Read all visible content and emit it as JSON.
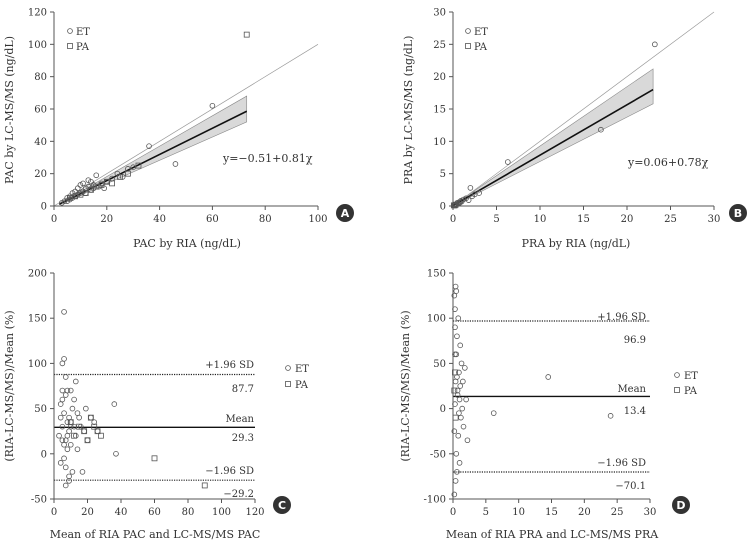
{
  "colors": {
    "axis": "#555555",
    "text": "#333333",
    "band": "#d9d9d9",
    "badge": "#333333"
  },
  "chart_data": [
    {
      "id": "A",
      "type": "scatter",
      "xlabel": "PAC by RIA (ng/dL)",
      "ylabel": "PAC by LC-MS/MS (ng/dL)",
      "xlim": [
        0,
        100
      ],
      "ylim": [
        0,
        120
      ],
      "xticks": [
        0,
        20,
        40,
        60,
        80,
        100
      ],
      "yticks": [
        0,
        20,
        40,
        60,
        80,
        100,
        120
      ],
      "legend": [
        "ET",
        "PA"
      ],
      "equation": "y=−0.51+0.81χ",
      "identity_line": {
        "x": [
          0,
          100
        ],
        "y": [
          0,
          100
        ]
      },
      "regression": {
        "intercept": -0.51,
        "slope": 0.81,
        "x_range": [
          2,
          73
        ]
      },
      "ci_band": {
        "x": [
          2,
          73
        ],
        "lower": [
          0.9,
          52
        ],
        "upper": [
          1.3,
          68
        ]
      },
      "series": [
        {
          "name": "ET",
          "marker": "circle",
          "x": [
            3,
            4,
            5,
            5,
            6,
            6,
            7,
            7,
            8,
            8,
            9,
            9,
            10,
            10,
            11,
            11,
            12,
            12,
            13,
            13,
            14,
            14,
            15,
            15,
            16,
            17,
            18,
            19,
            20,
            22,
            24,
            26,
            28,
            30,
            36,
            46,
            60
          ],
          "y": [
            2,
            3,
            3,
            5,
            4,
            6,
            5,
            8,
            6,
            9,
            7,
            11,
            8,
            13,
            9,
            14,
            8,
            11,
            12,
            16,
            10,
            15,
            11,
            13,
            19,
            12,
            14,
            11,
            15,
            17,
            20,
            18,
            23,
            24,
            37,
            26,
            62
          ]
        },
        {
          "name": "PA",
          "marker": "square",
          "x": [
            6,
            8,
            10,
            12,
            14,
            16,
            18,
            20,
            22,
            25,
            28,
            32,
            73
          ],
          "y": [
            5,
            6,
            7,
            8,
            10,
            12,
            13,
            15,
            14,
            18,
            20,
            25,
            106
          ]
        }
      ],
      "badge": "A"
    },
    {
      "id": "B",
      "type": "scatter",
      "xlabel": "PRA by RIA (ng/dL)",
      "ylabel": "PRA by LC-MS/MS (ng/dL)",
      "xlim": [
        0,
        30
      ],
      "ylim": [
        0,
        30
      ],
      "xticks": [
        0,
        5,
        10,
        15,
        20,
        25,
        30
      ],
      "yticks": [
        0,
        5,
        10,
        15,
        20,
        25,
        30
      ],
      "legend": [
        "ET",
        "PA"
      ],
      "equation": "y=0.06+0.78χ",
      "identity_line": {
        "x": [
          0,
          30
        ],
        "y": [
          0,
          30
        ]
      },
      "regression": {
        "intercept": 0.06,
        "slope": 0.78,
        "x_range": [
          0,
          23
        ]
      },
      "ci_band": {
        "x": [
          0,
          23
        ],
        "lower": [
          0.02,
          15.8
        ],
        "upper": [
          0.1,
          21.2
        ]
      },
      "series": [
        {
          "name": "ET",
          "marker": "circle",
          "x": [
            0.1,
            0.2,
            0.3,
            0.4,
            0.5,
            0.6,
            0.7,
            0.8,
            0.9,
            1.0,
            1.2,
            1.5,
            1.8,
            2.0,
            2.2,
            2.5,
            3.0,
            6.3,
            17.0,
            23.2
          ],
          "y": [
            0.1,
            0.2,
            0.2,
            0.3,
            0.5,
            0.4,
            0.6,
            0.5,
            0.8,
            0.7,
            1.0,
            1.2,
            0.9,
            2.8,
            1.5,
            1.8,
            2.0,
            6.8,
            11.8,
            25.0
          ]
        },
        {
          "name": "PA",
          "marker": "square",
          "x": [
            0.1,
            0.2,
            0.3
          ],
          "y": [
            0.1,
            0.1,
            0.2
          ]
        }
      ],
      "badge": "B"
    },
    {
      "id": "C",
      "type": "scatter",
      "subtype": "bland-altman",
      "xlabel": "Mean of RIA PAC and LC-MS/MS PAC",
      "ylabel": "(RIA-LC-MS/MS)/Mean (%)",
      "xlim": [
        0,
        120
      ],
      "ylim": [
        -50,
        200
      ],
      "xticks": [
        0,
        20,
        40,
        60,
        80,
        100,
        120
      ],
      "yticks": [
        -50,
        0,
        50,
        100,
        150,
        200
      ],
      "legend": [
        "ET",
        "PA"
      ],
      "mean_line": {
        "value": 29.3,
        "label": "Mean",
        "value_text": "29.3"
      },
      "upper_loa": {
        "value": 87.7,
        "label": "+1.96 SD",
        "value_text": "87.7"
      },
      "lower_loa": {
        "value": -29.2,
        "label": "−1.96 SD",
        "value_text": "−29.2"
      },
      "series": [
        {
          "name": "ET",
          "marker": "circle",
          "x": [
            3,
            4,
            4,
            5,
            5,
            5,
            6,
            6,
            6,
            7,
            7,
            7,
            8,
            8,
            8,
            9,
            9,
            9,
            10,
            10,
            10,
            11,
            11,
            12,
            12,
            13,
            13,
            14,
            14,
            15,
            16,
            17,
            18,
            19,
            20,
            22,
            24,
            26,
            36,
            37,
            5,
            6,
            7,
            8,
            9,
            10,
            6,
            4,
            5,
            7
          ],
          "y": [
            20,
            55,
            -10,
            100,
            60,
            30,
            157,
            105,
            45,
            65,
            15,
            -15,
            70,
            35,
            5,
            40,
            -30,
            25,
            30,
            70,
            10,
            50,
            -20,
            30,
            60,
            20,
            80,
            45,
            5,
            40,
            30,
            -20,
            25,
            50,
            15,
            40,
            35,
            25,
            55,
            0,
            70,
            -5,
            85,
            20,
            -25,
            35,
            10,
            40,
            15,
            -35
          ]
        },
        {
          "name": "PA",
          "marker": "square",
          "x": [
            10,
            12,
            15,
            18,
            20,
            22,
            24,
            26,
            28,
            60,
            90
          ],
          "y": [
            35,
            20,
            30,
            25,
            15,
            40,
            30,
            25,
            20,
            -5,
            -35
          ]
        }
      ],
      "badge": "C"
    },
    {
      "id": "D",
      "type": "scatter",
      "subtype": "bland-altman",
      "xlabel": "Mean of RIA PRA and LC-MS/MS PRA",
      "ylabel": "(RIA-LC-MS/MS)/Mean (%)",
      "xlim": [
        0,
        30
      ],
      "ylim": [
        -100,
        150
      ],
      "xticks": [
        0,
        5,
        10,
        15,
        20,
        25,
        30
      ],
      "yticks": [
        -100,
        -50,
        0,
        50,
        100,
        150
      ],
      "legend": [
        "ET",
        "PA"
      ],
      "mean_line": {
        "value": 13.4,
        "label": "Mean",
        "value_text": "13.4"
      },
      "upper_loa": {
        "value": 96.9,
        "label": "+1.96 SD",
        "value_text": "96.9"
      },
      "lower_loa": {
        "value": -70.1,
        "label": "−1.96 SD",
        "value_text": "−70.1"
      },
      "series": [
        {
          "name": "ET",
          "marker": "circle",
          "x": [
            0.2,
            0.3,
            0.3,
            0.4,
            0.5,
            0.5,
            0.6,
            0.7,
            0.8,
            0.8,
            0.9,
            1.0,
            1.0,
            1.1,
            1.2,
            1.3,
            1.4,
            1.5,
            1.6,
            1.8,
            2.0,
            2.2,
            0.2,
            0.4,
            0.6,
            0.3,
            0.5,
            0.7,
            0.9,
            1.1,
            0.4,
            0.6,
            6.2,
            14.5,
            24.0,
            0.2,
            0.3
          ],
          "y": [
            125,
            110,
            60,
            30,
            130,
            -50,
            80,
            20,
            -30,
            100,
            40,
            10,
            -60,
            70,
            -10,
            50,
            0,
            30,
            -20,
            45,
            10,
            -35,
            -95,
            -80,
            -70,
            90,
            60,
            15,
            -5,
            25,
            135,
            35,
            -5,
            35,
            -8,
            -25,
            5
          ]
        },
        {
          "name": "PA",
          "marker": "square",
          "x": [
            0.2,
            0.3,
            0.4
          ],
          "y": [
            20,
            40,
            -10
          ]
        }
      ],
      "badge": "D"
    }
  ]
}
